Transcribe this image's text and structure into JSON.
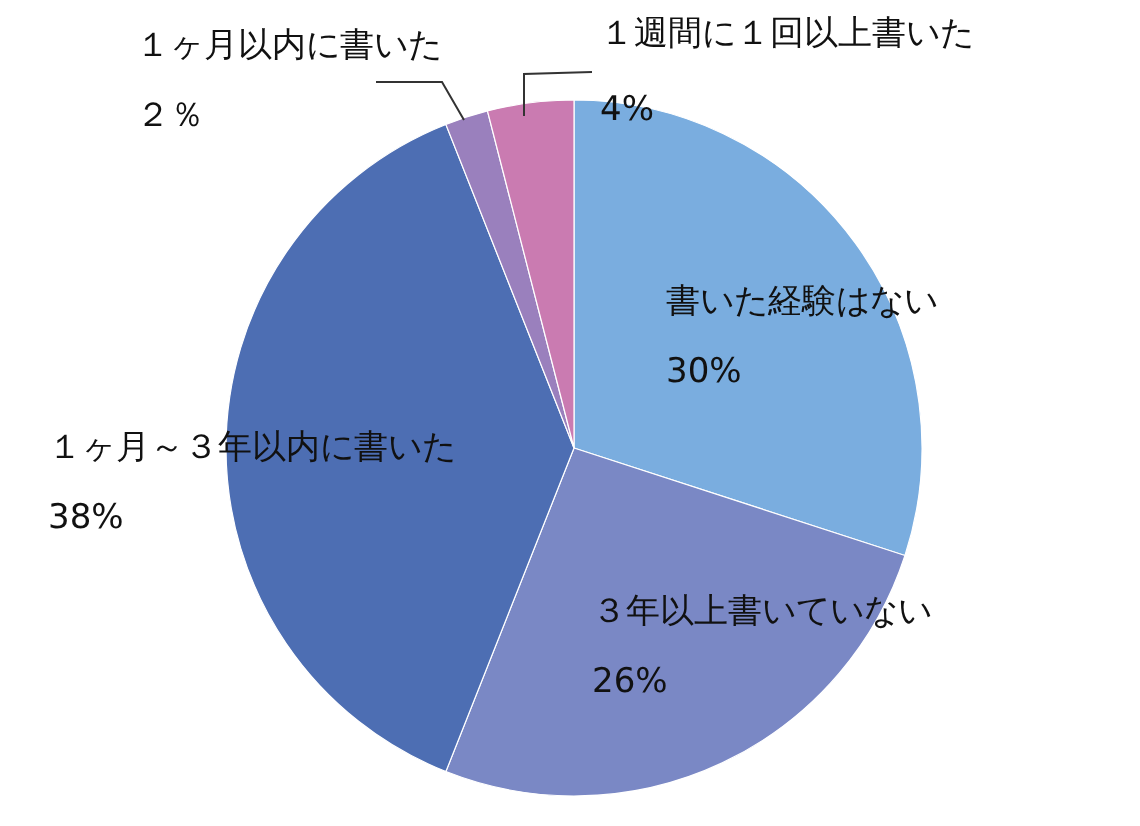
{
  "chart_data": {
    "type": "pie",
    "categories": [
      "書いた経験はない",
      "３年以上書いていない",
      "１ヶ月～３年以内に書いた",
      "１ヶ月以内に書いた",
      "１週間に１回以上書いた"
    ],
    "values": [
      30,
      26,
      38,
      2,
      4
    ],
    "colors": [
      "#7aaddf",
      "#7a88c5",
      "#4d6eb3",
      "#9a80bd",
      "#ca7bb1"
    ],
    "value_labels": [
      "30%",
      "26%",
      "38%",
      "２％",
      "4%"
    ]
  }
}
